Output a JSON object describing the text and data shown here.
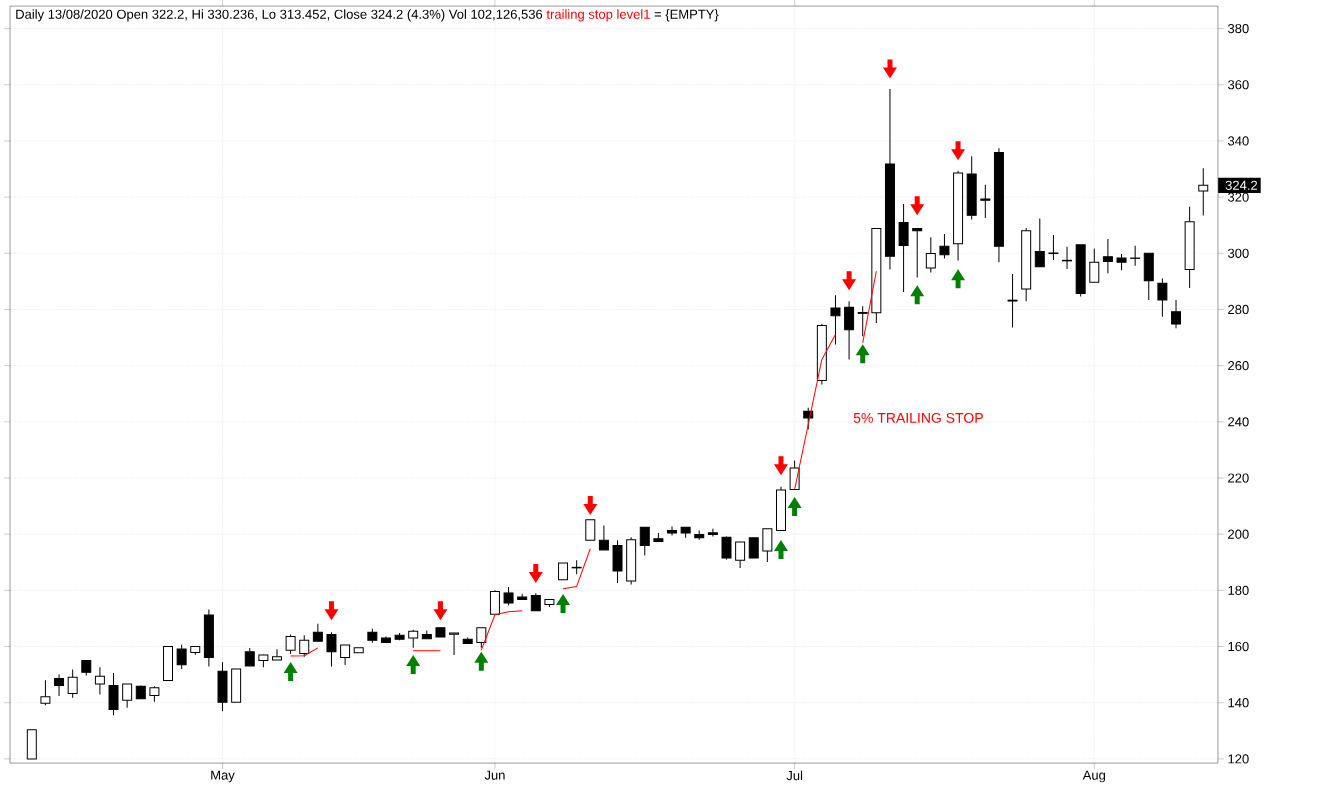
{
  "chart_data": {
    "type": "candlestick",
    "title": "Daily 13/08/2020 Open 322.2, Hi 330.236, Lo 313.452, Close 324.2 (4.3%) Vol 102,126,536",
    "annotations": [
      "= {EMPTY}",
      "5% TRAILING STOP",
      {
        "text": "324.2",
        "y": 324.2
      }
    ],
    "categories": [
      null,
      null,
      null,
      null,
      null,
      null,
      null,
      null,
      null,
      null,
      null,
      null,
      null,
      null,
      "May",
      null,
      null,
      null,
      null,
      null,
      null,
      null,
      null,
      null,
      null,
      null,
      null,
      null,
      null,
      null,
      null,
      null,
      null,
      null,
      "Jun",
      null,
      null,
      null,
      null,
      null,
      null,
      null,
      null,
      null,
      null,
      null,
      null,
      null,
      null,
      null,
      null,
      null,
      null,
      null,
      null,
      null,
      "Jul",
      null,
      null,
      null,
      null,
      null,
      null,
      null,
      null,
      null,
      null,
      null,
      null,
      null,
      null,
      null,
      null,
      null,
      null,
      null,
      null,
      null,
      "Aug",
      null,
      null,
      null,
      null,
      null,
      null,
      null,
      null
    ],
    "ohlc": [
      [
        120,
        130.4,
        120,
        130.4
      ],
      [
        139.8,
        148,
        139.1,
        142.1
      ],
      [
        148.6,
        150,
        142.4,
        146.1
      ],
      [
        143.3,
        151.8,
        141.8,
        149.1
      ],
      [
        155,
        155,
        149.7,
        150.8
      ],
      [
        146.7,
        152.6,
        142.9,
        149.4
      ],
      [
        146.1,
        150.6,
        135.5,
        137.6
      ],
      [
        140.9,
        146.7,
        138.2,
        146.7
      ],
      [
        145.9,
        146.1,
        141.4,
        141.4
      ],
      [
        142.6,
        145.9,
        140.3,
        145.3
      ],
      [
        147.9,
        160,
        147.9,
        160
      ],
      [
        159.1,
        160.6,
        152,
        153.5
      ],
      [
        157.9,
        160,
        157.1,
        160
      ],
      [
        171.2,
        173.2,
        152.9,
        156.1
      ],
      [
        151.2,
        154.4,
        137,
        140.2
      ],
      [
        140.2,
        152,
        140.2,
        152
      ],
      [
        158.1,
        159.5,
        153.1,
        153.1
      ],
      [
        155,
        157.2,
        152.6,
        157
      ],
      [
        155.2,
        159,
        155.2,
        156.4
      ],
      [
        158.7,
        164.3,
        157.3,
        163.6
      ],
      [
        157.5,
        164,
        156.4,
        162.2
      ],
      [
        165.1,
        168.1,
        161.9,
        161.9
      ],
      [
        164.3,
        165.1,
        152.9,
        158.1
      ],
      [
        156.1,
        160.5,
        153.4,
        160.5
      ],
      [
        157.8,
        159.6,
        157.8,
        159.6
      ],
      [
        165.1,
        166.3,
        161.3,
        162.2
      ],
      [
        163,
        163.6,
        161.4,
        161.4
      ],
      [
        164,
        164.8,
        162.2,
        162.6
      ],
      [
        163,
        166,
        159.6,
        165.4
      ],
      [
        164.3,
        165.7,
        162.8,
        162.8
      ],
      [
        166.7,
        166.7,
        163.4,
        163.4
      ],
      [
        164.4,
        164.8,
        157,
        164.8
      ],
      [
        162.6,
        163.2,
        161.1,
        161.1
      ],
      [
        161.4,
        166.7,
        159.6,
        166.7
      ],
      [
        171.5,
        180,
        171.5,
        179.6
      ],
      [
        179.1,
        181.2,
        174.7,
        175.5
      ],
      [
        177.6,
        178.8,
        176.7,
        176.7
      ],
      [
        178.2,
        179,
        172.7,
        172.7
      ],
      [
        175,
        176.7,
        174.1,
        176.7
      ],
      [
        183.8,
        189.7,
        183.8,
        189.7
      ],
      [
        188,
        190.7,
        185.7,
        188.2
      ],
      [
        197.8,
        205.1,
        197.8,
        205.1
      ],
      [
        197.8,
        203.1,
        194.4,
        194.4
      ],
      [
        196,
        197.8,
        182.6,
        186.9
      ],
      [
        183.3,
        198.9,
        182.1,
        198
      ],
      [
        202.5,
        202.5,
        192.4,
        196
      ],
      [
        198.4,
        200.4,
        197.4,
        197.4
      ],
      [
        201.3,
        202.7,
        199.5,
        200.4
      ],
      [
        202.5,
        202.5,
        198.7,
        200.4
      ],
      [
        199.9,
        201.3,
        198,
        198.7
      ],
      [
        200.5,
        201.9,
        199.2,
        199.9
      ],
      [
        198.9,
        199.2,
        191,
        191.5
      ],
      [
        190.7,
        197.2,
        188,
        197.2
      ],
      [
        198.7,
        198.7,
        191.5,
        191.5
      ],
      [
        194,
        201.9,
        190.1,
        201.9
      ],
      [
        201.3,
        216.9,
        201.3,
        215.7
      ],
      [
        215.9,
        226.2,
        215.9,
        223.6
      ],
      [
        243.8,
        245,
        237.3,
        241.4
      ],
      [
        254.7,
        274.9,
        253.3,
        274.3
      ],
      [
        280.5,
        285.1,
        267.5,
        277.8
      ],
      [
        280.8,
        282.9,
        262.2,
        272.8
      ],
      [
        278.6,
        281.1,
        270.5,
        278.9
      ],
      [
        278.8,
        308.8,
        275.2,
        308.8
      ],
      [
        331.8,
        358.5,
        294.2,
        298.9
      ],
      [
        311,
        317.5,
        286.2,
        302.8
      ],
      [
        308.8,
        308.8,
        291.4,
        308
      ],
      [
        294.8,
        305.7,
        293.2,
        299.9
      ],
      [
        302.5,
        306.9,
        298.1,
        299.5
      ],
      [
        303.4,
        329.4,
        297.4,
        328.6
      ],
      [
        328.2,
        334.5,
        312,
        313.5
      ],
      [
        319.3,
        324.4,
        312.6,
        318.9
      ],
      [
        335.9,
        337.4,
        296.8,
        302.5
      ],
      [
        283.3,
        292.6,
        273.6,
        283
      ],
      [
        287.3,
        309,
        282.9,
        308
      ],
      [
        300.6,
        312.4,
        295.2,
        295.2
      ],
      [
        300.1,
        306.5,
        297.6,
        299.9
      ],
      [
        297.5,
        302.3,
        294.4,
        297.3
      ],
      [
        303,
        303,
        284.6,
        285.7
      ],
      [
        289.7,
        301.7,
        289.7,
        296.8
      ],
      [
        298.8,
        305.1,
        292.9,
        297.1
      ],
      [
        298.3,
        299.7,
        294,
        296.8
      ],
      [
        298.3,
        302.7,
        295.6,
        298.2
      ],
      [
        300,
        300,
        283.4,
        290.2
      ],
      [
        289.3,
        291,
        277.4,
        283.4
      ],
      [
        279.2,
        283.4,
        273.3,
        274.8
      ],
      [
        294.2,
        316.6,
        287.6,
        311.2
      ],
      [
        322.2,
        330.236,
        313.452,
        324.2
      ]
    ],
    "series": [
      {
        "type": "line",
        "name": "trailing stop level1",
        "color": "#ff0000",
        "values": [
          null,
          null,
          null,
          null,
          null,
          null,
          null,
          null,
          null,
          null,
          null,
          null,
          null,
          null,
          null,
          null,
          null,
          null,
          null,
          156.6,
          156.7,
          159.5,
          null,
          null,
          null,
          null,
          null,
          null,
          158.5,
          158.5,
          158.5,
          null,
          null,
          158.7,
          171.3,
          172.4,
          172.7,
          null,
          null,
          180.6,
          181.4,
          194.8,
          null,
          null,
          null,
          null,
          null,
          null,
          null,
          null,
          null,
          null,
          null,
          null,
          null,
          null,
          215.9,
          239.0,
          262.2,
          271.1,
          null,
          268.1,
          293.6,
          null,
          null,
          null,
          null,
          null,
          null,
          null,
          null,
          null,
          null,
          null,
          null,
          null,
          null,
          null,
          null,
          null,
          null,
          null,
          null,
          null,
          null,
          null,
          null
        ]
      },
      {
        "type": "scatter",
        "color": "#ff0000",
        "marker": "triangle",
        "values": [
          null,
          null,
          null,
          null,
          null,
          null,
          null,
          null,
          null,
          null,
          null,
          null,
          null,
          null,
          null,
          null,
          null,
          null,
          null,
          null,
          null,
          null,
          172.6,
          null,
          null,
          null,
          null,
          null,
          null,
          null,
          172.6,
          null,
          null,
          null,
          null,
          null,
          null,
          185.8,
          null,
          null,
          null,
          210,
          null,
          null,
          null,
          null,
          null,
          null,
          null,
          null,
          null,
          null,
          null,
          null,
          null,
          224.2,
          null,
          null,
          null,
          null,
          290,
          null,
          null,
          365.4,
          null,
          316.7,
          null,
          null,
          336.3,
          null,
          null,
          null,
          null,
          null,
          null,
          null,
          null,
          null,
          null,
          null,
          null,
          null,
          null,
          null,
          null,
          null,
          null
        ]
      },
      {
        "type": "scatter",
        "color": "#008000",
        "marker": "triangle",
        "values": [
          null,
          null,
          null,
          null,
          null,
          null,
          null,
          null,
          null,
          null,
          null,
          null,
          null,
          null,
          null,
          null,
          null,
          null,
          null,
          151.3,
          null,
          null,
          null,
          null,
          null,
          null,
          null,
          null,
          153.8,
          null,
          null,
          null,
          null,
          154.9,
          null,
          null,
          null,
          null,
          null,
          175.5,
          null,
          null,
          null,
          null,
          null,
          null,
          null,
          null,
          null,
          null,
          null,
          null,
          null,
          null,
          null,
          194.7,
          210,
          null,
          null,
          null,
          null,
          264.4,
          null,
          null,
          null,
          285.4,
          null,
          null,
          291.1,
          null,
          null,
          null,
          null,
          null,
          null,
          null,
          null,
          null,
          null,
          null,
          null,
          null,
          null,
          null,
          null,
          null,
          null
        ]
      }
    ],
    "ylim": [
      118.5,
      388
    ],
    "yticks": [
      120,
      140,
      160,
      180,
      200,
      220,
      240,
      260,
      280,
      300,
      320,
      340,
      360,
      380
    ],
    "grid": true,
    "legend": "top left"
  }
}
